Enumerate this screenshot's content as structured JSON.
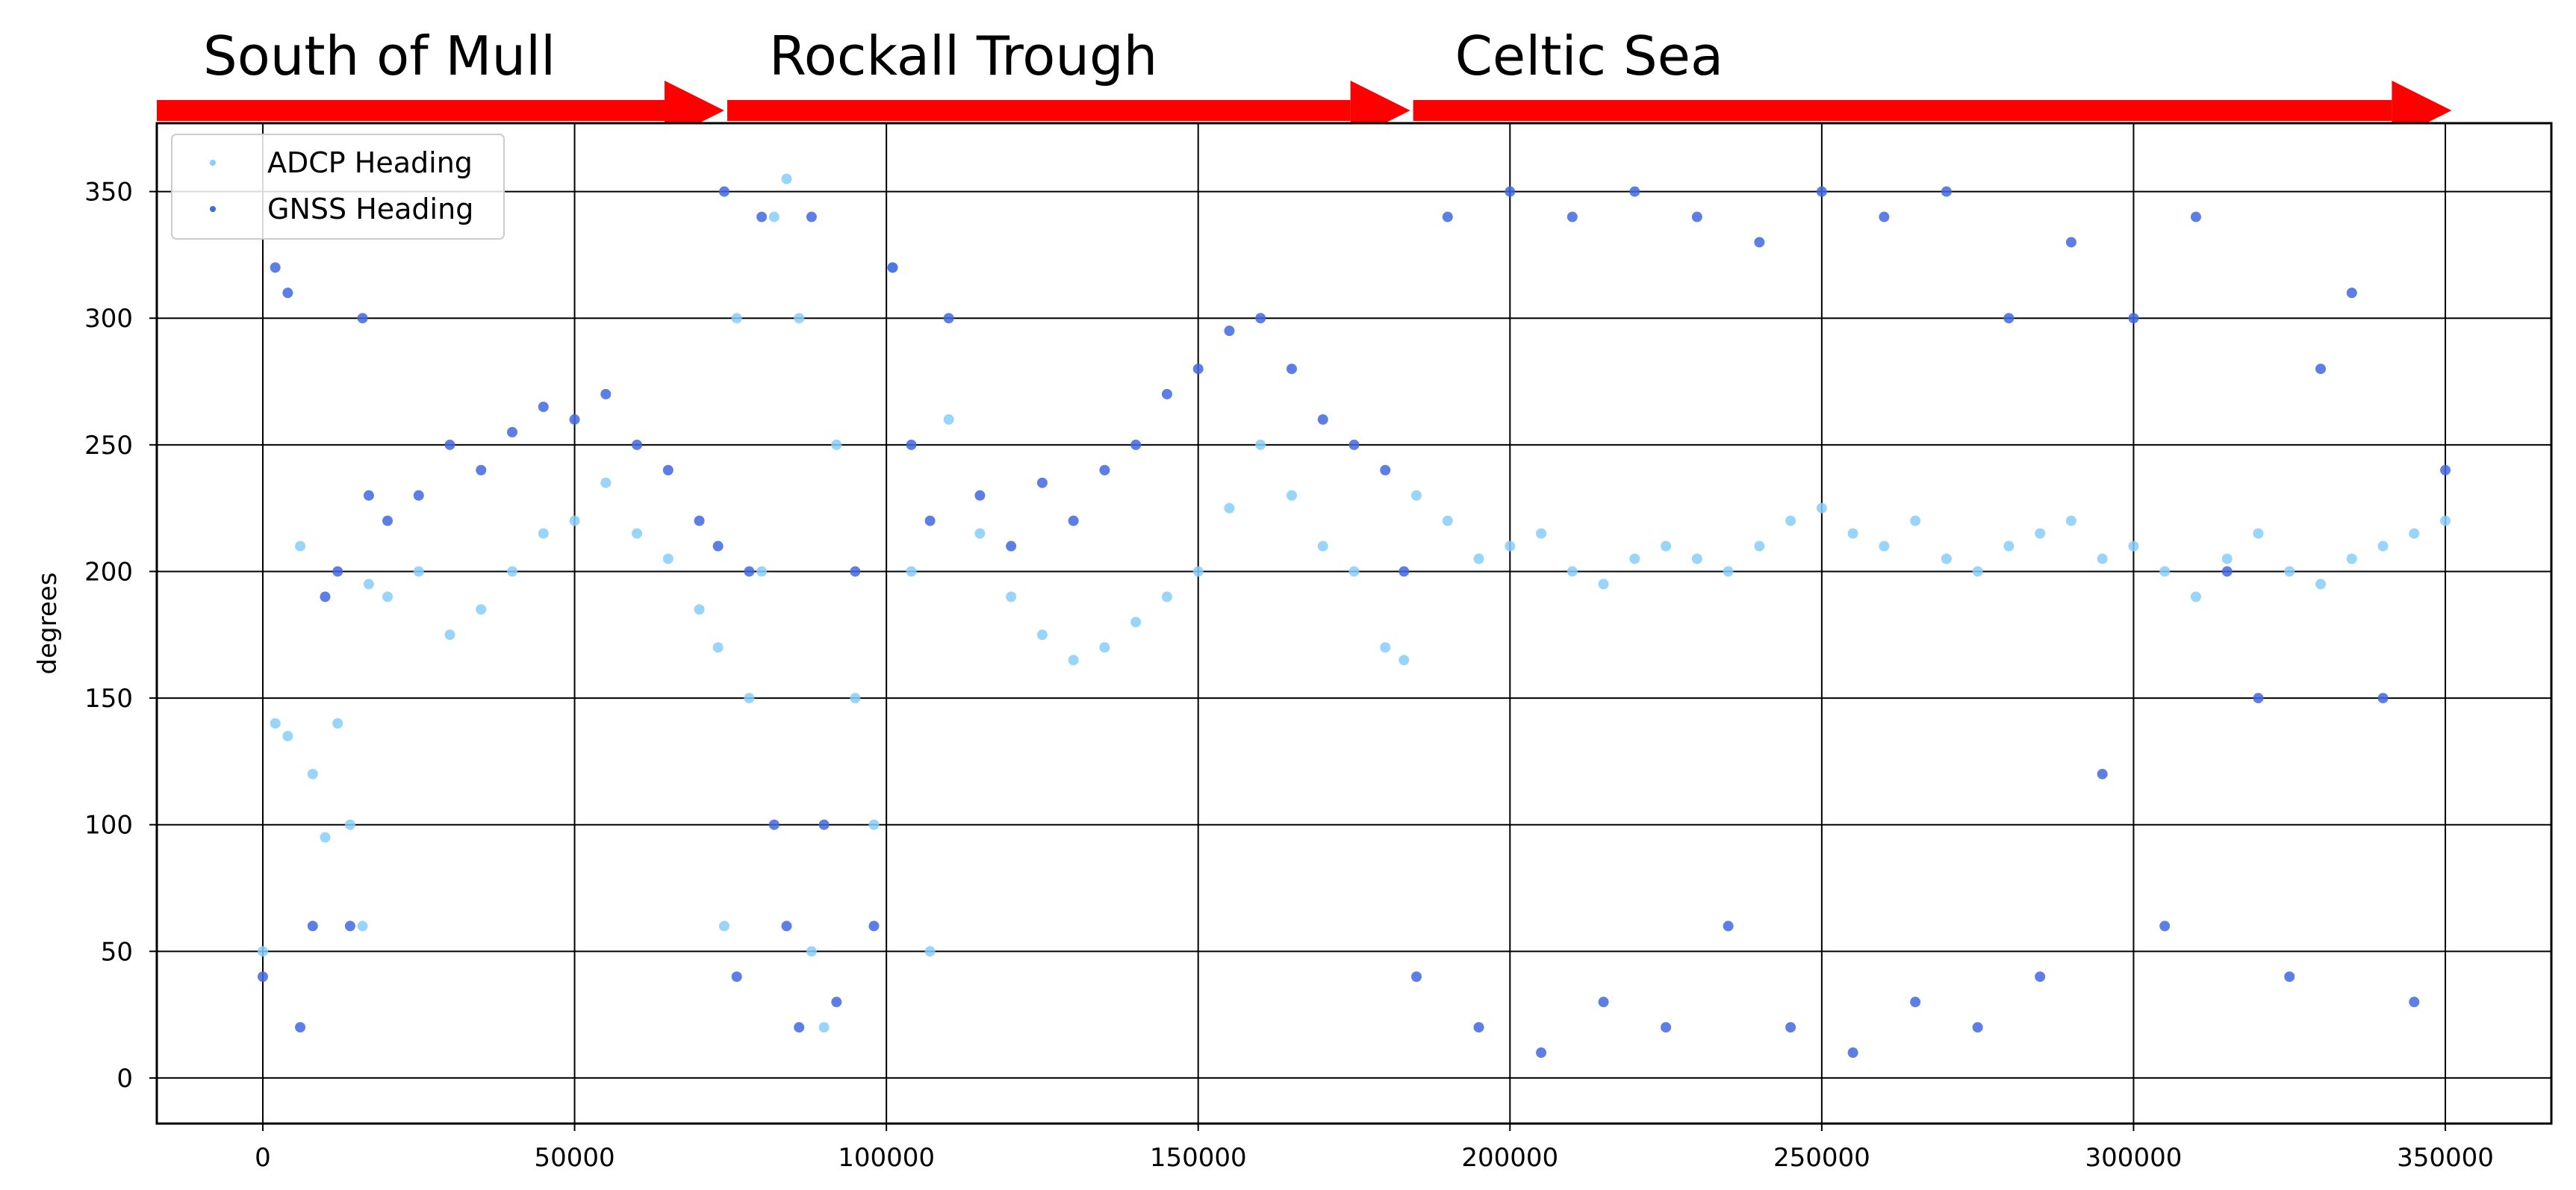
{
  "chart_data": {
    "type": "scatter",
    "title": "",
    "xlabel": "",
    "ylabel": "degrees",
    "xlim": [
      -17000,
      367000
    ],
    "ylim": [
      -18,
      377
    ],
    "xticks": [
      0,
      50000,
      100000,
      150000,
      200000,
      250000,
      300000,
      350000
    ],
    "xtick_labels": [
      "0",
      "50000",
      "100000",
      "150000",
      "200000",
      "250000",
      "300000",
      "350000"
    ],
    "yticks": [
      0,
      50,
      100,
      150,
      200,
      250,
      300,
      350
    ],
    "ytick_labels": [
      "0",
      "50",
      "100",
      "150",
      "200",
      "250",
      "300",
      "350"
    ],
    "grid": true,
    "legend_position": "top-left",
    "colors": {
      "adcp": "#87CEFA",
      "gnss": "#4169E1",
      "arrow": "#FF0000"
    },
    "regions": [
      {
        "label": "South of Mull",
        "start": 0,
        "end": 74000
      },
      {
        "label": "Rockall Trough",
        "start": 74000,
        "end": 184000
      },
      {
        "label": "Celtic Sea",
        "start": 184000,
        "end": 351000
      }
    ],
    "series": [
      {
        "name": "ADCP Heading",
        "color": "#87CEFA",
        "x": [
          0,
          2000,
          4000,
          6000,
          8000,
          10000,
          12000,
          14000,
          16000,
          17000,
          20000,
          25000,
          30000,
          35000,
          40000,
          45000,
          50000,
          55000,
          60000,
          65000,
          70000,
          73000,
          74000,
          76000,
          78000,
          80000,
          82000,
          84000,
          86000,
          88000,
          90000,
          92000,
          95000,
          98000,
          101000,
          104000,
          107000,
          110000,
          115000,
          120000,
          125000,
          130000,
          135000,
          140000,
          145000,
          150000,
          155000,
          160000,
          165000,
          170000,
          175000,
          180000,
          183000,
          185000,
          190000,
          195000,
          200000,
          205000,
          210000,
          215000,
          220000,
          225000,
          230000,
          235000,
          240000,
          245000,
          250000,
          255000,
          260000,
          265000,
          270000,
          275000,
          280000,
          285000,
          290000,
          295000,
          300000,
          305000,
          310000,
          315000,
          320000,
          325000,
          330000,
          335000,
          340000,
          345000,
          350000
        ],
        "y": [
          50,
          140,
          135,
          210,
          120,
          95,
          140,
          100,
          60,
          195,
          190,
          200,
          175,
          185,
          200,
          215,
          220,
          235,
          215,
          205,
          185,
          170,
          60,
          300,
          150,
          200,
          340,
          355,
          300,
          50,
          20,
          250,
          150,
          100,
          320,
          200,
          50,
          260,
          215,
          190,
          175,
          165,
          170,
          180,
          190,
          200,
          225,
          250,
          230,
          210,
          200,
          170,
          165,
          230,
          220,
          205,
          210,
          215,
          200,
          195,
          205,
          210,
          205,
          200,
          210,
          220,
          225,
          215,
          210,
          220,
          205,
          200,
          210,
          215,
          220,
          205,
          210,
          200,
          190,
          205,
          215,
          200,
          195,
          205,
          210,
          215,
          220
        ]
      },
      {
        "name": "GNSS Heading",
        "color": "#4169E1",
        "x": [
          0,
          2000,
          4000,
          6000,
          8000,
          10000,
          12000,
          14000,
          16000,
          17000,
          20000,
          25000,
          30000,
          35000,
          40000,
          45000,
          50000,
          55000,
          60000,
          65000,
          70000,
          73000,
          74000,
          76000,
          78000,
          80000,
          82000,
          84000,
          86000,
          88000,
          90000,
          92000,
          95000,
          98000,
          101000,
          104000,
          107000,
          110000,
          115000,
          120000,
          125000,
          130000,
          135000,
          140000,
          145000,
          150000,
          155000,
          160000,
          165000,
          170000,
          175000,
          180000,
          183000,
          185000,
          190000,
          195000,
          200000,
          205000,
          210000,
          215000,
          220000,
          225000,
          230000,
          235000,
          240000,
          245000,
          250000,
          255000,
          260000,
          265000,
          270000,
          275000,
          280000,
          285000,
          290000,
          295000,
          300000,
          305000,
          310000,
          315000,
          320000,
          325000,
          330000,
          335000,
          340000,
          345000,
          350000
        ],
        "y": [
          40,
          320,
          310,
          20,
          60,
          190,
          200,
          60,
          300,
          230,
          220,
          230,
          250,
          240,
          255,
          265,
          260,
          270,
          250,
          240,
          220,
          210,
          350,
          40,
          200,
          340,
          100,
          60,
          20,
          340,
          100,
          30,
          200,
          60,
          320,
          250,
          220,
          300,
          230,
          210,
          235,
          220,
          240,
          250,
          270,
          280,
          295,
          300,
          280,
          260,
          250,
          240,
          200,
          40,
          340,
          20,
          350,
          10,
          340,
          30,
          350,
          20,
          340,
          60,
          330,
          20,
          350,
          10,
          340,
          30,
          350,
          20,
          300,
          40,
          330,
          120,
          300,
          60,
          340,
          200,
          150,
          40,
          280,
          310,
          150,
          30,
          240
        ]
      }
    ]
  }
}
